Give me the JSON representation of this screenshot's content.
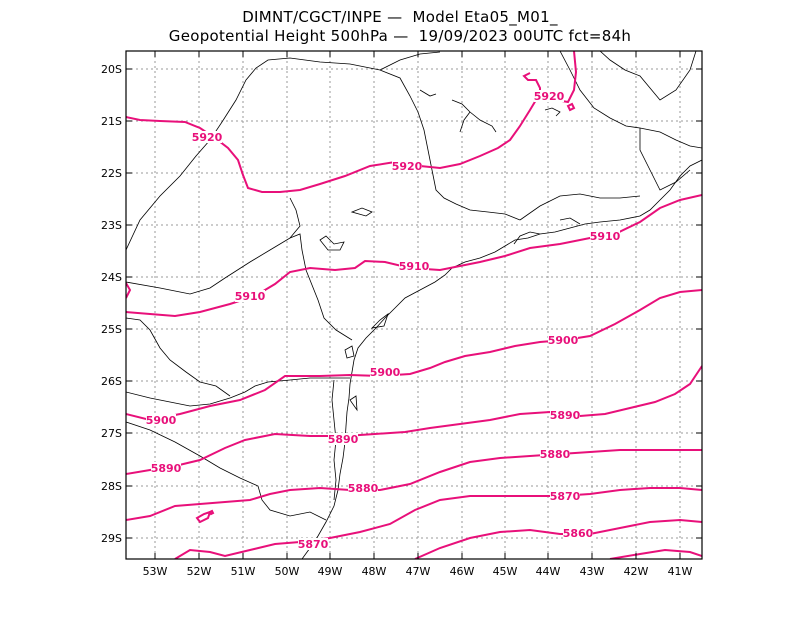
{
  "header": {
    "line1": "DIMNT/CGCT/INPE —  Model Eta05_M01_",
    "line2": "Geopotential Height 500hPa —  19/09/2023 00UTC fct=84h"
  },
  "colors": {
    "contour": "#e8107a",
    "coast": "#000000",
    "grid": "#9a9a9a"
  },
  "axes": {
    "lat_labels": [
      "20S",
      "21S",
      "22S",
      "23S",
      "24S",
      "25S",
      "26S",
      "27S",
      "28S",
      "29S"
    ],
    "lon_labels": [
      "53W",
      "52W",
      "51W",
      "50W",
      "49W",
      "48W",
      "47W",
      "46W",
      "45W",
      "44W",
      "43W",
      "42W",
      "41W"
    ]
  },
  "contours": [
    {
      "value": 5920,
      "labels": [
        "5920",
        "5920",
        "5920"
      ]
    },
    {
      "value": 5910,
      "labels": [
        "5910",
        "5910",
        "5910"
      ]
    },
    {
      "value": 5900,
      "labels": [
        "5900",
        "5900",
        "5900"
      ]
    },
    {
      "value": 5890,
      "labels": [
        "5890",
        "5890",
        "5890"
      ]
    },
    {
      "value": 5880,
      "labels": [
        "5880",
        "5880"
      ]
    },
    {
      "value": 5870,
      "labels": [
        "5870",
        "5870"
      ]
    },
    {
      "value": 5860,
      "labels": [
        "5860"
      ]
    }
  ]
}
